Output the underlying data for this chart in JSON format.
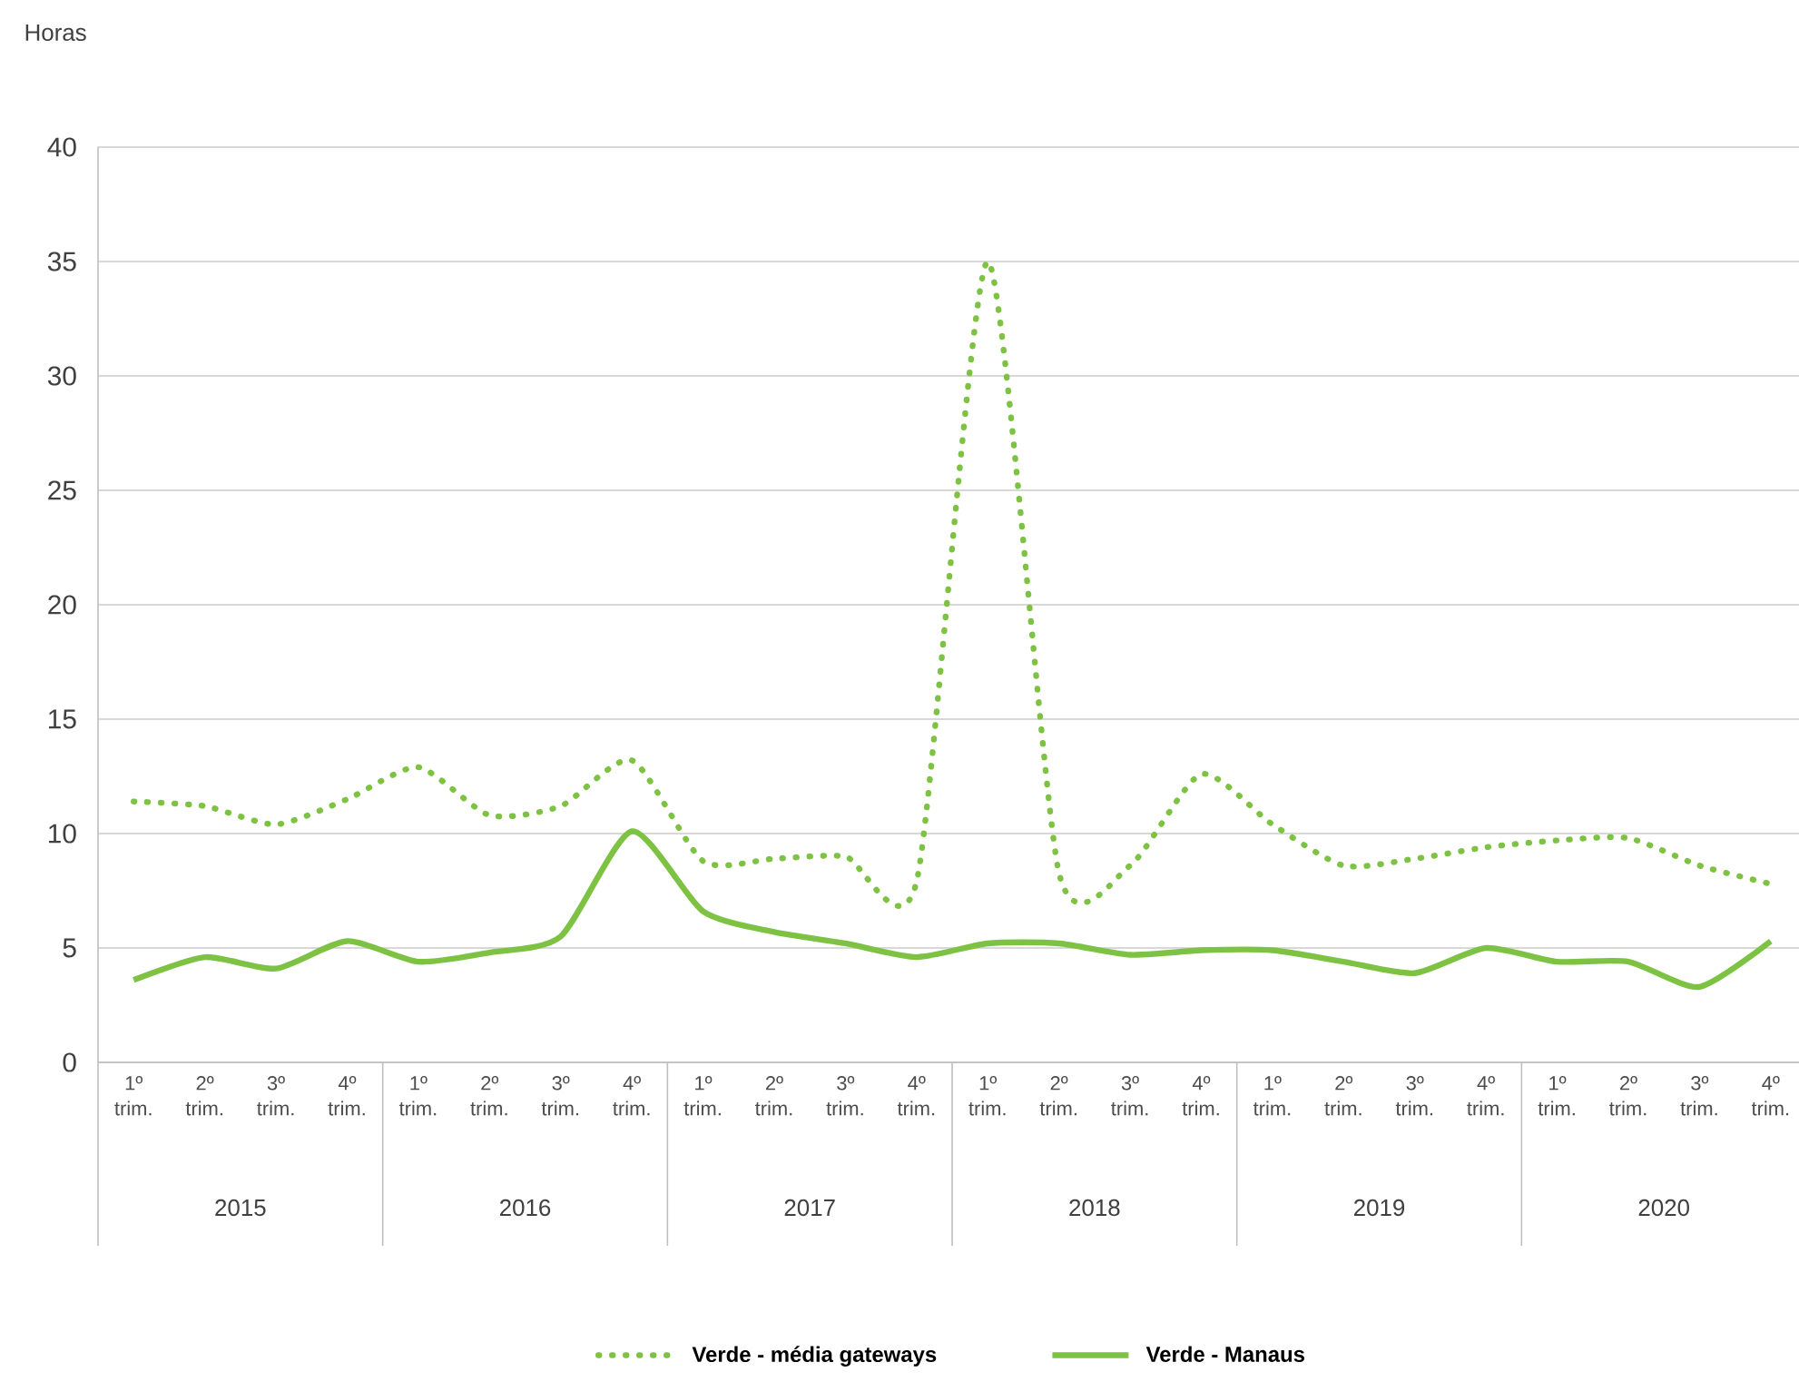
{
  "chart_data": {
    "type": "line",
    "ylabel": "Horas",
    "categories": [
      "1º trim.",
      "2º trim.",
      "3º trim.",
      "4º trim.",
      "1º trim.",
      "2º trim.",
      "3º trim.",
      "4º trim.",
      "1º trim.",
      "2º trim.",
      "3º trim.",
      "4º trim.",
      "1º trim.",
      "2º trim.",
      "3º trim.",
      "4º trim.",
      "1º trim.",
      "2º trim.",
      "3º trim.",
      "4º trim.",
      "1º trim.",
      "2º trim.",
      "3º trim.",
      "4º trim."
    ],
    "annotations": [
      "2015",
      "2016",
      "2017",
      "2018",
      "2019",
      "2020"
    ],
    "series": [
      {
        "name": "Verde - média gateways",
        "color": "#7dc242",
        "line_style": "dotted",
        "values": [
          11.4,
          11.2,
          10.4,
          11.5,
          12.9,
          10.8,
          11.2,
          13.2,
          8.8,
          8.9,
          9.0,
          7.9,
          35,
          8.3,
          8.6,
          12.6,
          10.4,
          8.6,
          8.9,
          9.4,
          9.7,
          9.8,
          8.6,
          7.8
        ]
      },
      {
        "name": "Verde - Manaus",
        "color": "#7dc242",
        "line_style": "solid",
        "values": [
          3.6,
          4.6,
          4.1,
          5.3,
          4.4,
          4.8,
          5.5,
          10.1,
          6.6,
          5.7,
          5.2,
          4.6,
          5.2,
          5.2,
          4.7,
          4.9,
          4.9,
          4.4,
          3.9,
          5.0,
          4.4,
          4.4,
          3.3,
          5.3
        ]
      }
    ],
    "ylim": [
      0,
      40
    ],
    "yticks": [
      0,
      5,
      10,
      15,
      20,
      25,
      30,
      35,
      40
    ],
    "grid": "y",
    "legend": "bottom",
    "marker": "none"
  }
}
